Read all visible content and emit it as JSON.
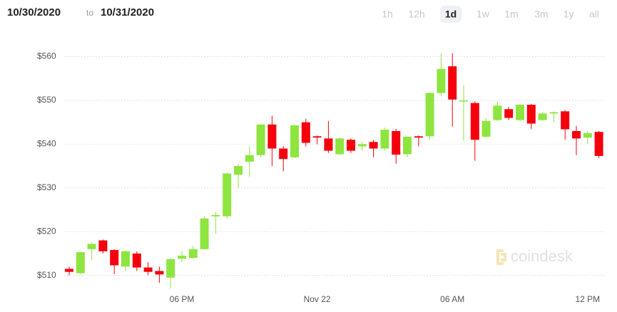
{
  "header": {
    "from": "10/30/2020",
    "to_word": "to",
    "to": "10/31/2020",
    "ranges": [
      "1h",
      "12h",
      "1d",
      "1w",
      "1m",
      "3m",
      "1y",
      "all"
    ],
    "selected_range": "1d"
  },
  "chart_data": {
    "type": "candlestick",
    "watermark": "coindesk",
    "categories": [
      null,
      null,
      null,
      null,
      null,
      null,
      null,
      null,
      null,
      null,
      "06 PM",
      null,
      null,
      null,
      null,
      null,
      null,
      null,
      null,
      null,
      null,
      null,
      "Nov 22",
      null,
      null,
      null,
      null,
      null,
      null,
      null,
      null,
      null,
      null,
      null,
      "06 AM",
      null,
      null,
      null,
      null,
      null,
      null,
      null,
      null,
      null,
      null,
      null,
      "12 PM",
      null
    ],
    "open": [
      511.5,
      510.5,
      516,
      518,
      515.8,
      512,
      515,
      511.8,
      511,
      509.5,
      513.8,
      514,
      516,
      523.5,
      523.5,
      533,
      536,
      537.5,
      544.5,
      539,
      537,
      545,
      541.8,
      541.3,
      537.7,
      541,
      539.5,
      540.5,
      539,
      543,
      537.7,
      541.8,
      541.8,
      551.7,
      557.8,
      549.8,
      549.4,
      541.7,
      545.5,
      548,
      545.5,
      549,
      545.5,
      547,
      547.5,
      543,
      541.5,
      542.8
    ],
    "high": [
      512,
      515.3,
      517.5,
      518.2,
      516,
      515.8,
      515.5,
      513,
      512,
      514,
      515.5,
      516.8,
      523.5,
      524.5,
      533.5,
      535.5,
      539.5,
      544.5,
      546.5,
      539.5,
      544.5,
      545.8,
      542,
      545.3,
      541.5,
      541.3,
      540.5,
      541,
      543.8,
      543.5,
      541.8,
      542,
      551.8,
      560.8,
      560.8,
      553.5,
      549.8,
      546,
      549.8,
      548.5,
      549.2,
      549.2,
      547.3,
      547.5,
      547.8,
      544.2,
      543,
      543
    ],
    "low": [
      510,
      510.3,
      513.5,
      515,
      510.3,
      511,
      511,
      510,
      508.3,
      507,
      513,
      513.8,
      515.8,
      519.5,
      523,
      530,
      532.5,
      537,
      535,
      533.8,
      536.8,
      539.5,
      540,
      538,
      537.5,
      538,
      538.5,
      537,
      538.5,
      535.5,
      537,
      539.5,
      541,
      551,
      544,
      540.8,
      536.2,
      541.5,
      545.3,
      545.5,
      545.3,
      543.5,
      545.3,
      545,
      541,
      537.5,
      540,
      536.8
    ],
    "close": [
      510.8,
      515.3,
      517.2,
      515.5,
      512.3,
      515.5,
      511.8,
      510.8,
      510.2,
      513.7,
      514.5,
      516,
      523,
      523.8,
      533.3,
      535,
      537.5,
      544.5,
      539,
      536.6,
      544.3,
      540.3,
      541.5,
      538.5,
      541.3,
      538.5,
      540,
      539,
      543.3,
      537.6,
      541.7,
      541.5,
      551.7,
      557.2,
      550.2,
      550,
      541,
      545.3,
      548.8,
      546,
      549,
      544.7,
      547,
      547.3,
      543.4,
      541.3,
      542.5,
      537.3
    ],
    "up_color": "#8ee53f",
    "down_color": "#f5000d",
    "ylim": [
      507,
      564
    ],
    "yticks": [
      {
        "value": 510,
        "label": "$510"
      },
      {
        "value": 520,
        "label": "$520"
      },
      {
        "value": 530,
        "label": "$530"
      },
      {
        "value": 540,
        "label": "$540"
      },
      {
        "value": 550,
        "label": "$550"
      },
      {
        "value": 560,
        "label": "$560"
      }
    ],
    "grid": true
  }
}
